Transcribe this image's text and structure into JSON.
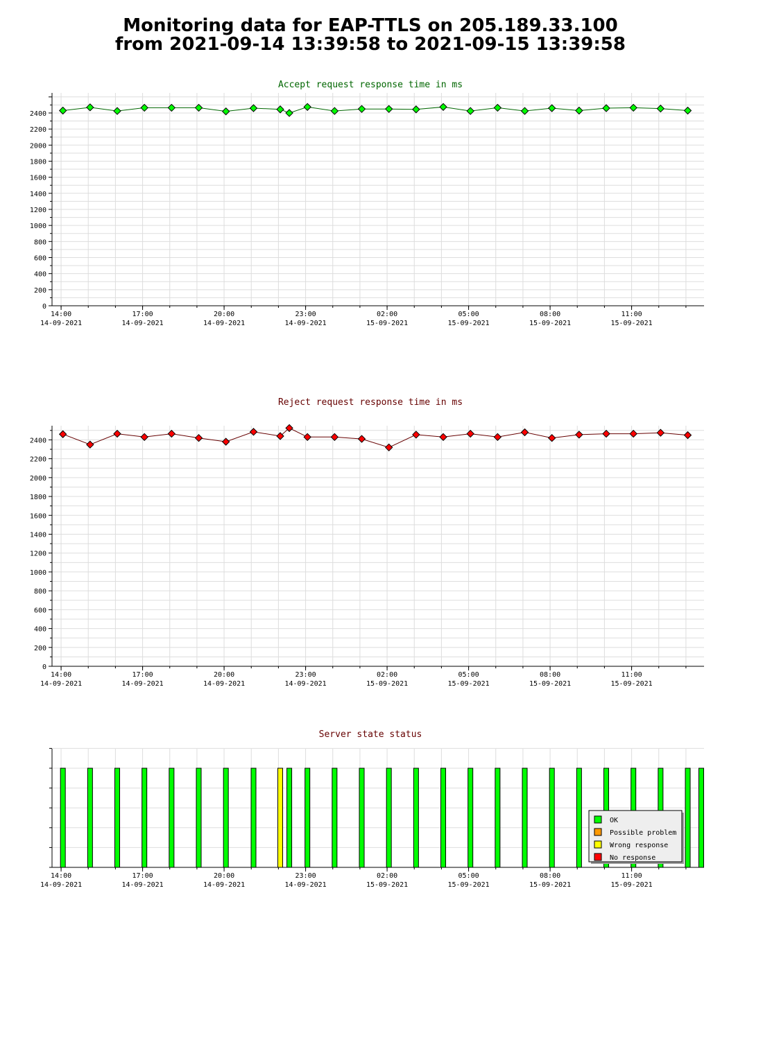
{
  "page": {
    "title_line1": "Monitoring data for EAP-TTLS on 205.189.33.100",
    "title_line2": "from 2021-09-14 13:39:58 to 2021-09-15 13:39:58"
  },
  "colors": {
    "grid": "#dddddd",
    "axis": "#000000",
    "accept_title": "#006600",
    "reject_title": "#660000",
    "status_title": "#660000",
    "accept_line": "#006600",
    "accept_marker": "#00ff00",
    "reject_line": "#660000",
    "reject_marker": "#ff0000",
    "ok": "#00ff00",
    "possible_problem": "#ff9900",
    "wrong_response": "#ffff00",
    "no_response": "#ff0000"
  },
  "chart_data": [
    {
      "type": "line",
      "title": "Accept request response time in ms",
      "time_axis_start": "2021-09-14 13:39:58",
      "time_axis_end": "2021-09-15 13:39:58",
      "x_ticks": [
        {
          "time": "14:00",
          "date": "14-09-2021"
        },
        {
          "time": "17:00",
          "date": "14-09-2021"
        },
        {
          "time": "20:00",
          "date": "14-09-2021"
        },
        {
          "time": "23:00",
          "date": "14-09-2021"
        },
        {
          "time": "02:00",
          "date": "15-09-2021"
        },
        {
          "time": "05:00",
          "date": "15-09-2021"
        },
        {
          "time": "08:00",
          "date": "15-09-2021"
        },
        {
          "time": "11:00",
          "date": "15-09-2021"
        }
      ],
      "y_ticks": [
        "0",
        "200",
        "400",
        "600",
        "800",
        "1000",
        "1200",
        "1400",
        "1600",
        "1800",
        "2000",
        "2200",
        "2400"
      ],
      "ylim": [
        0,
        2650
      ],
      "grid": true,
      "x": [
        "2021-09-14 14:04",
        "2021-09-14 15:04",
        "2021-09-14 16:04",
        "2021-09-14 17:04",
        "2021-09-14 18:04",
        "2021-09-14 19:04",
        "2021-09-14 20:04",
        "2021-09-14 21:05",
        "2021-09-14 22:04",
        "2021-09-14 22:24",
        "2021-09-14 23:04",
        "2021-09-15 00:04",
        "2021-09-15 01:04",
        "2021-09-15 02:04",
        "2021-09-15 03:04",
        "2021-09-15 04:04",
        "2021-09-15 05:04",
        "2021-09-15 06:04",
        "2021-09-15 07:04",
        "2021-09-15 08:04",
        "2021-09-15 09:04",
        "2021-09-15 10:04",
        "2021-09-15 11:04",
        "2021-09-15 12:04",
        "2021-09-15 13:04"
      ],
      "values": [
        2430,
        2470,
        2425,
        2465,
        2465,
        2465,
        2420,
        2460,
        2445,
        2400,
        2475,
        2425,
        2450,
        2450,
        2445,
        2475,
        2425,
        2465,
        2425,
        2460,
        2430,
        2460,
        2465,
        2455,
        2430
      ]
    },
    {
      "type": "line",
      "title": "Reject request response time in ms",
      "x_ticks": [
        {
          "time": "14:00",
          "date": "14-09-2021"
        },
        {
          "time": "17:00",
          "date": "14-09-2021"
        },
        {
          "time": "20:00",
          "date": "14-09-2021"
        },
        {
          "time": "23:00",
          "date": "14-09-2021"
        },
        {
          "time": "02:00",
          "date": "15-09-2021"
        },
        {
          "time": "05:00",
          "date": "15-09-2021"
        },
        {
          "time": "08:00",
          "date": "15-09-2021"
        },
        {
          "time": "11:00",
          "date": "15-09-2021"
        }
      ],
      "y_ticks": [
        "0",
        "200",
        "400",
        "600",
        "800",
        "1000",
        "1200",
        "1400",
        "1600",
        "1800",
        "2000",
        "2200",
        "2400"
      ],
      "ylim": [
        0,
        2550
      ],
      "grid": true,
      "x": [
        "2021-09-14 14:04",
        "2021-09-14 15:04",
        "2021-09-14 16:04",
        "2021-09-14 17:04",
        "2021-09-14 18:04",
        "2021-09-14 19:04",
        "2021-09-14 20:04",
        "2021-09-14 21:05",
        "2021-09-14 22:04",
        "2021-09-14 22:24",
        "2021-09-14 23:04",
        "2021-09-15 00:04",
        "2021-09-15 01:04",
        "2021-09-15 02:04",
        "2021-09-15 03:04",
        "2021-09-15 04:04",
        "2021-09-15 05:04",
        "2021-09-15 06:04",
        "2021-09-15 07:04",
        "2021-09-15 08:04",
        "2021-09-15 09:04",
        "2021-09-15 10:04",
        "2021-09-15 11:04",
        "2021-09-15 12:04",
        "2021-09-15 13:04"
      ],
      "values": [
        2460,
        2350,
        2465,
        2430,
        2465,
        2420,
        2380,
        2485,
        2440,
        2525,
        2430,
        2430,
        2410,
        2320,
        2455,
        2430,
        2465,
        2430,
        2480,
        2420,
        2455,
        2465,
        2465,
        2475,
        2450
      ]
    },
    {
      "type": "bar",
      "title": "Server state status",
      "x_ticks": [
        {
          "time": "14:00",
          "date": "14-09-2021"
        },
        {
          "time": "17:00",
          "date": "14-09-2021"
        },
        {
          "time": "20:00",
          "date": "14-09-2021"
        },
        {
          "time": "23:00",
          "date": "14-09-2021"
        },
        {
          "time": "02:00",
          "date": "15-09-2021"
        },
        {
          "time": "05:00",
          "date": "15-09-2021"
        },
        {
          "time": "08:00",
          "date": "15-09-2021"
        },
        {
          "time": "11:00",
          "date": "15-09-2021"
        }
      ],
      "legend_placement": "bottom-right",
      "legend": [
        {
          "label": "OK",
          "color": "#00ff00"
        },
        {
          "label": "Possible problem",
          "color": "#ff9900"
        },
        {
          "label": "Wrong response",
          "color": "#ffff00"
        },
        {
          "label": "No response",
          "color": "#ff0000"
        }
      ],
      "x": [
        "2021-09-14 14:04",
        "2021-09-14 15:04",
        "2021-09-14 16:04",
        "2021-09-14 17:04",
        "2021-09-14 18:04",
        "2021-09-14 19:04",
        "2021-09-14 20:04",
        "2021-09-14 21:05",
        "2021-09-14 22:04",
        "2021-09-14 22:24",
        "2021-09-14 23:04",
        "2021-09-15 00:04",
        "2021-09-15 01:04",
        "2021-09-15 02:04",
        "2021-09-15 03:04",
        "2021-09-15 04:04",
        "2021-09-15 05:04",
        "2021-09-15 06:04",
        "2021-09-15 07:04",
        "2021-09-15 08:04",
        "2021-09-15 09:04",
        "2021-09-15 10:04",
        "2021-09-15 11:04",
        "2021-09-15 12:04",
        "2021-09-15 13:04",
        "2021-09-15 13:39"
      ],
      "states": [
        "OK",
        "OK",
        "OK",
        "OK",
        "OK",
        "OK",
        "OK",
        "OK",
        "Wrong response",
        "OK",
        "OK",
        "OK",
        "OK",
        "OK",
        "OK",
        "OK",
        "OK",
        "OK",
        "OK",
        "OK",
        "OK",
        "OK",
        "OK",
        "OK",
        "OK",
        "OK"
      ]
    }
  ]
}
